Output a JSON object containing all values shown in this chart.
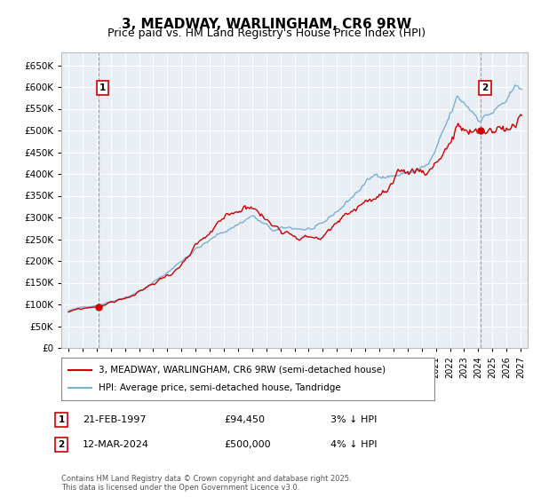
{
  "title": "3, MEADWAY, WARLINGHAM, CR6 9RW",
  "subtitle": "Price paid vs. HM Land Registry's House Price Index (HPI)",
  "legend_line1": "3, MEADWAY, WARLINGHAM, CR6 9RW (semi-detached house)",
  "legend_line2": "HPI: Average price, semi-detached house, Tandridge",
  "footnote": "Contains HM Land Registry data © Crown copyright and database right 2025.\nThis data is licensed under the Open Government Licence v3.0.",
  "marker1_date": "21-FEB-1997",
  "marker1_price": "£94,450",
  "marker1_hpi": "3% ↓ HPI",
  "marker2_date": "12-MAR-2024",
  "marker2_price": "£500,000",
  "marker2_hpi": "4% ↓ HPI",
  "line_color_property": "#cc0000",
  "line_color_hpi": "#7ab0d4",
  "vline_color": "#dd8888",
  "background_color": "#ffffff",
  "plot_bg_color": "#e8eef4",
  "grid_color": "#ffffff",
  "ylim": [
    0,
    680000
  ],
  "yticks": [
    0,
    50000,
    100000,
    150000,
    200000,
    250000,
    300000,
    350000,
    400000,
    450000,
    500000,
    550000,
    600000,
    650000
  ],
  "xlim_start": 1994.5,
  "xlim_end": 2027.5,
  "xticks": [
    1995,
    1996,
    1997,
    1998,
    1999,
    2000,
    2001,
    2002,
    2003,
    2004,
    2005,
    2006,
    2007,
    2008,
    2009,
    2010,
    2011,
    2012,
    2013,
    2014,
    2015,
    2016,
    2017,
    2018,
    2019,
    2020,
    2021,
    2022,
    2023,
    2024,
    2025,
    2026,
    2027
  ],
  "sale1_x": 1997.12,
  "sale1_y": 94450,
  "sale2_x": 2024.19,
  "sale2_y": 500000
}
